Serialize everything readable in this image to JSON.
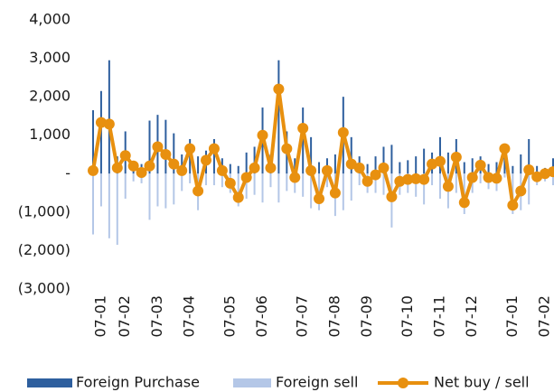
{
  "chart_data": {
    "type": "bar-line",
    "categories": [
      null,
      "07-01",
      null,
      null,
      "07-02",
      null,
      null,
      null,
      "07-03",
      null,
      null,
      null,
      "07-04",
      null,
      null,
      null,
      null,
      "07-05",
      null,
      null,
      null,
      "07-06",
      null,
      null,
      null,
      null,
      "07-07",
      null,
      null,
      null,
      "07-08",
      null,
      null,
      null,
      "07-09",
      null,
      null,
      null,
      null,
      "07-10",
      null,
      null,
      null,
      "07-11",
      null,
      null,
      null,
      "07-12",
      null,
      null,
      null,
      null,
      "07-01",
      null,
      null,
      null,
      "07-02",
      null
    ],
    "series": [
      {
        "name": "Foreign Purchase",
        "color": "#2e5f9e",
        "kind": "bar",
        "values": [
          1650,
          2150,
          2950,
          450,
          1100,
          300,
          250,
          1380,
          1530,
          1400,
          1050,
          500,
          900,
          450,
          600,
          900,
          400,
          250,
          200,
          550,
          700,
          1720,
          500,
          2950,
          1100,
          400,
          1720,
          950,
          300,
          400,
          500,
          2000,
          950,
          450,
          250,
          450,
          700,
          750,
          300,
          350,
          450,
          650,
          550,
          950,
          550,
          900,
          300,
          400,
          450,
          250,
          300,
          650,
          200,
          500,
          900,
          200,
          150,
          400
        ]
      },
      {
        "name": "Foreign sell",
        "color": "#b4c7e7",
        "kind": "bar",
        "values": [
          -1580,
          -850,
          -1680,
          -1850,
          -650,
          -200,
          -250,
          -1200,
          -850,
          -900,
          -800,
          -450,
          -250,
          -950,
          -300,
          -300,
          -350,
          -500,
          -850,
          -650,
          -550,
          -750,
          -350,
          -750,
          -450,
          -500,
          -600,
          -900,
          -950,
          -350,
          -1100,
          -950,
          -700,
          -300,
          -500,
          -500,
          -550,
          -1400,
          -550,
          -500,
          -600,
          -800,
          -300,
          -650,
          -900,
          -500,
          -1050,
          -500,
          -250,
          -400,
          -450,
          -100,
          -1050,
          -950,
          -800,
          -300,
          -200,
          -300
        ]
      },
      {
        "name": "Net buy / sell",
        "color": "#e8900f",
        "kind": "line",
        "values": [
          80,
          1330,
          1290,
          150,
          470,
          200,
          30,
          200,
          700,
          500,
          250,
          80,
          650,
          -450,
          350,
          650,
          80,
          -250,
          -620,
          -100,
          150,
          1000,
          150,
          2200,
          650,
          -100,
          1180,
          80,
          -650,
          80,
          -500,
          1070,
          250,
          150,
          -200,
          -30,
          150,
          -600,
          -200,
          -150,
          -130,
          -150,
          250,
          320,
          -330,
          430,
          -750,
          -100,
          220,
          -100,
          -120,
          650,
          -820,
          -450,
          100,
          -80,
          0,
          50
        ]
      }
    ],
    "ylim": [
      -3000,
      4000
    ],
    "yticks": [
      {
        "value": 4000,
        "label": "4,000"
      },
      {
        "value": 3000,
        "label": "3,000"
      },
      {
        "value": 2000,
        "label": "2,000"
      },
      {
        "value": 1000,
        "label": "1,000"
      },
      {
        "value": 0,
        "label": "-"
      },
      {
        "value": -1000,
        "label": "(1,000)"
      },
      {
        "value": -2000,
        "label": "(2,000)"
      },
      {
        "value": -3000,
        "label": "(3,000)"
      }
    ],
    "legend": "bottom",
    "grid": false
  }
}
